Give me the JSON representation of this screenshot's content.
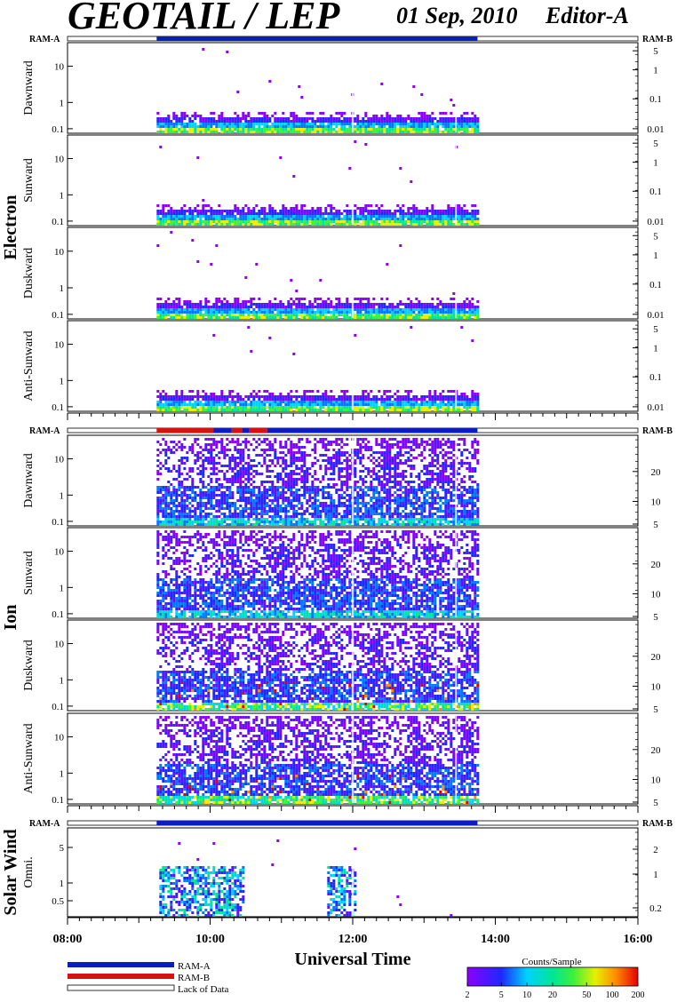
{
  "header": {
    "title": "GEOTAIL / LEP",
    "date": "01 Sep, 2010",
    "editor": "Editor-A"
  },
  "colors": {
    "ram_a": "#0a1ebe",
    "ram_b": "#d21414",
    "lack_of_data": "#ffffff"
  },
  "groups": [
    {
      "name": "Electron",
      "ram_left": "RAM-A",
      "ram_right": "RAM-B",
      "panels": [
        {
          "label": "Dawnward",
          "left_ticks": [
            "10",
            "1",
            "0.1"
          ],
          "right_ticks": [
            "5",
            "1",
            "0.1",
            "0.01"
          ]
        },
        {
          "label": "Sunward",
          "left_ticks": [
            "10",
            "1",
            "0.1"
          ],
          "right_ticks": [
            "5",
            "1",
            "0.1",
            "0.01"
          ]
        },
        {
          "label": "Duskward",
          "left_ticks": [
            "10",
            "1",
            "0.1"
          ],
          "right_ticks": [
            "5",
            "1",
            "0.1",
            "0.01"
          ]
        },
        {
          "label": "Anti-Sunward",
          "left_ticks": [
            "10",
            "1",
            "0.1"
          ],
          "right_ticks": [
            "5",
            "1",
            "0.1",
            "0.01"
          ]
        }
      ]
    },
    {
      "name": "Ion",
      "ram_left": "RAM-A",
      "ram_right": "RAM-B",
      "panels": [
        {
          "label": "Dawnward",
          "left_ticks": [
            "10",
            "1",
            "0.1"
          ],
          "right_ticks": [
            "20",
            "10",
            "5"
          ]
        },
        {
          "label": "Sunward",
          "left_ticks": [
            "10",
            "1",
            "0.1"
          ],
          "right_ticks": [
            "20",
            "10",
            "5"
          ]
        },
        {
          "label": "Duskward",
          "left_ticks": [
            "10",
            "1",
            "0.1"
          ],
          "right_ticks": [
            "20",
            "10",
            "5"
          ]
        },
        {
          "label": "Anti-Sunward",
          "left_ticks": [
            "10",
            "1",
            "0.1"
          ],
          "right_ticks": [
            "20",
            "10",
            "5"
          ]
        }
      ]
    },
    {
      "name": "Solar Wind",
      "ram_left": "RAM-A",
      "ram_right": "RAM-B",
      "panels": [
        {
          "label": "Omni.",
          "left_ticks": [
            "5",
            "1",
            "0.5"
          ],
          "right_ticks": [
            "2",
            "1",
            "0.2"
          ]
        }
      ]
    }
  ],
  "chart_data": {
    "type": "heatmap",
    "xlabel": "Universal Time",
    "x_ticks": [
      "08:00",
      "10:00",
      "12:00",
      "14:00",
      "16:00"
    ],
    "x_range_hours": [
      8,
      16
    ],
    "data_coverage_hours": [
      9.25,
      13.75
    ],
    "ram_status": {
      "electron": [
        {
          "mode": "RAM-A",
          "start": 9.25,
          "end": 13.75
        }
      ],
      "ion": [
        {
          "mode": "RAM-B",
          "start": 9.25,
          "end": 10.05
        },
        {
          "mode": "RAM-A",
          "start": 10.05,
          "end": 10.3
        },
        {
          "mode": "RAM-B",
          "start": 10.3,
          "end": 10.45
        },
        {
          "mode": "RAM-A",
          "start": 10.45,
          "end": 10.55
        },
        {
          "mode": "RAM-B",
          "start": 10.55,
          "end": 10.8
        },
        {
          "mode": "RAM-A",
          "start": 10.8,
          "end": 13.75
        }
      ],
      "solar_wind": [
        {
          "mode": "RAM-A",
          "start": 9.25,
          "end": 13.75
        }
      ]
    },
    "colorbar": {
      "title": "Counts/Sample",
      "ticks": [
        "2",
        "5",
        "10",
        "20",
        "50",
        "100",
        "200"
      ],
      "range": [
        2,
        200
      ],
      "scale": "log"
    },
    "legend": [
      {
        "label": "RAM-A",
        "color": "#0a1ebe"
      },
      {
        "label": "RAM-B",
        "color": "#d21414"
      },
      {
        "label": "Lack of Data",
        "color": "#ffffff"
      }
    ]
  }
}
